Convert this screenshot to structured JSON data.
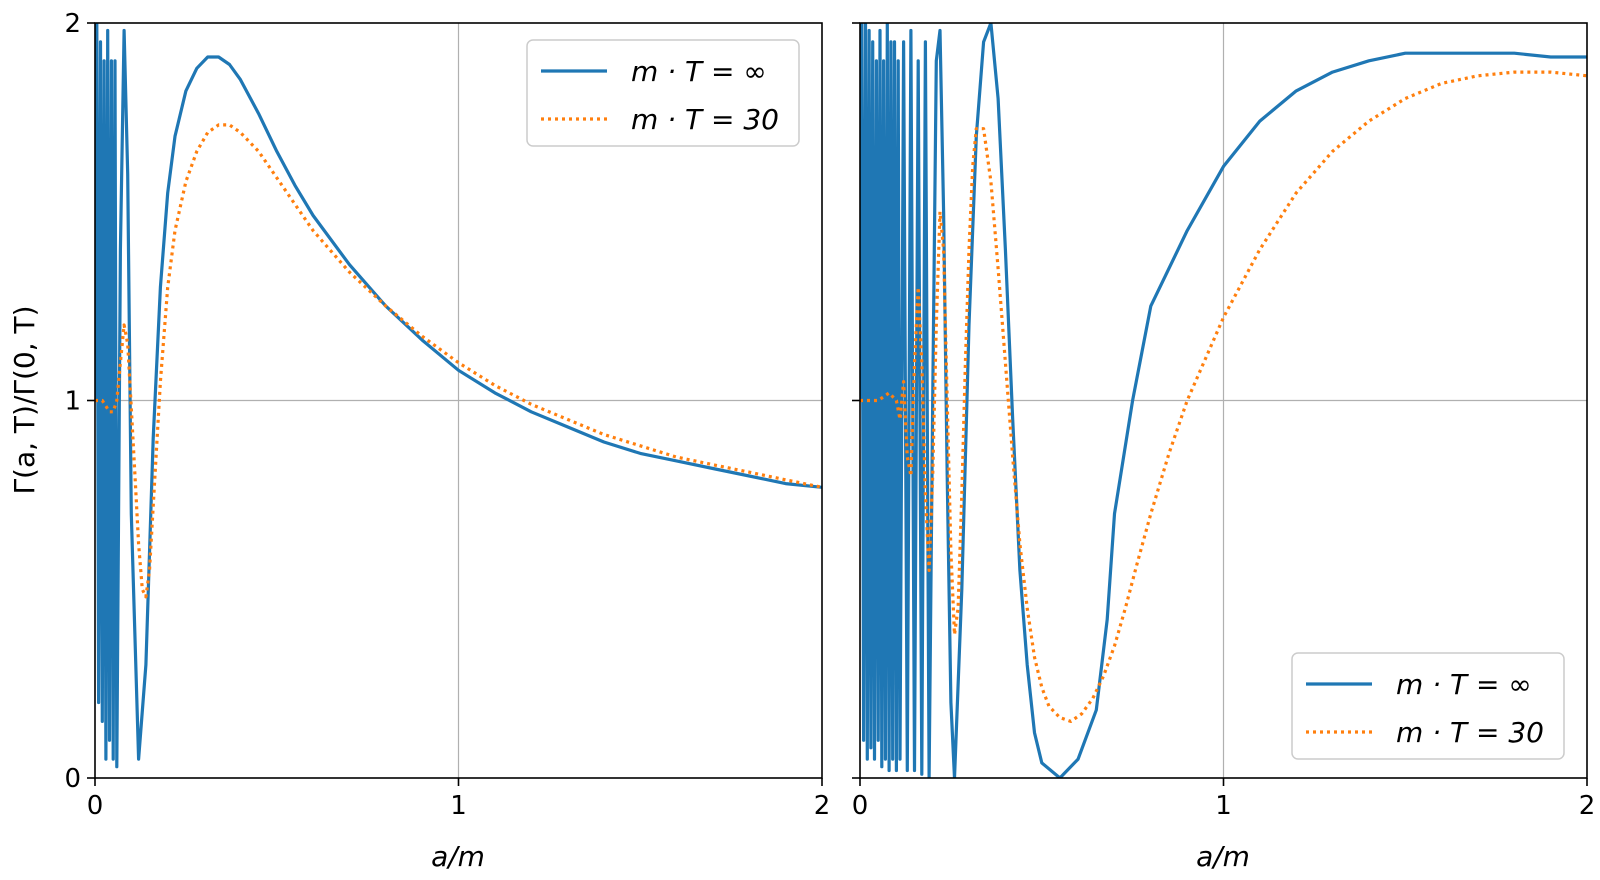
{
  "chart_data": [
    {
      "type": "line",
      "panel": "left",
      "xlabel": "a/m",
      "ylabel": "Γ(a, T)/Γ(0, T)",
      "xlim": [
        0,
        2
      ],
      "ylim": [
        0,
        2
      ],
      "xticks": [
        "0",
        "1",
        "2"
      ],
      "yticks": [
        "0",
        "1",
        "2"
      ],
      "grid": true,
      "legend_position": "top-right",
      "colors": {
        "inf": "#1f77b4",
        "t30": "#ff7f0e"
      },
      "series": [
        {
          "name": "m · T = ∞",
          "style": "solid",
          "x": [
            0.0,
            0.005,
            0.01,
            0.015,
            0.02,
            0.025,
            0.03,
            0.035,
            0.04,
            0.045,
            0.05,
            0.055,
            0.06,
            0.07,
            0.08,
            0.09,
            0.1,
            0.12,
            0.14,
            0.16,
            0.18,
            0.2,
            0.22,
            0.25,
            0.28,
            0.31,
            0.34,
            0.37,
            0.4,
            0.45,
            0.5,
            0.55,
            0.6,
            0.7,
            0.8,
            0.9,
            1.0,
            1.1,
            1.2,
            1.3,
            1.4,
            1.5,
            1.6,
            1.7,
            1.8,
            1.9,
            2.0
          ],
          "y": [
            1.0,
            2.0,
            0.2,
            1.95,
            0.15,
            1.9,
            0.05,
            1.98,
            0.1,
            1.9,
            0.05,
            1.9,
            0.03,
            1.4,
            1.98,
            1.6,
            0.7,
            0.05,
            0.3,
            0.9,
            1.3,
            1.55,
            1.7,
            1.82,
            1.88,
            1.91,
            1.91,
            1.89,
            1.85,
            1.76,
            1.66,
            1.57,
            1.49,
            1.36,
            1.25,
            1.16,
            1.08,
            1.02,
            0.97,
            0.93,
            0.89,
            0.86,
            0.84,
            0.82,
            0.8,
            0.78,
            0.77
          ]
        },
        {
          "name": "m · T = 30",
          "style": "dotted",
          "x": [
            0.0,
            0.02,
            0.04,
            0.05,
            0.06,
            0.07,
            0.08,
            0.09,
            0.1,
            0.11,
            0.12,
            0.13,
            0.14,
            0.15,
            0.16,
            0.18,
            0.2,
            0.22,
            0.25,
            0.28,
            0.31,
            0.34,
            0.37,
            0.4,
            0.45,
            0.5,
            0.55,
            0.6,
            0.7,
            0.8,
            0.9,
            1.0,
            1.1,
            1.2,
            1.3,
            1.4,
            1.5,
            1.6,
            1.7,
            1.8,
            1.9,
            2.0
          ],
          "y": [
            1.0,
            1.0,
            0.97,
            0.97,
            1.0,
            1.1,
            1.2,
            1.15,
            0.98,
            0.8,
            0.62,
            0.5,
            0.48,
            0.55,
            0.72,
            1.05,
            1.3,
            1.45,
            1.58,
            1.66,
            1.71,
            1.73,
            1.73,
            1.71,
            1.66,
            1.59,
            1.52,
            1.45,
            1.34,
            1.25,
            1.17,
            1.1,
            1.04,
            0.99,
            0.95,
            0.91,
            0.88,
            0.85,
            0.83,
            0.81,
            0.79,
            0.77
          ]
        }
      ]
    },
    {
      "type": "line",
      "panel": "right",
      "xlabel": "a/m",
      "ylabel": "",
      "xlim": [
        0,
        2
      ],
      "ylim": [
        0,
        2
      ],
      "xticks": [
        "0",
        "1",
        "2"
      ],
      "yticks": [
        "",
        "",
        ""
      ],
      "grid": true,
      "legend_position": "bottom-right",
      "colors": {
        "inf": "#1f77b4",
        "t30": "#ff7f0e"
      },
      "series": [
        {
          "name": "m · T = ∞",
          "style": "solid",
          "x": [
            0.0,
            0.005,
            0.01,
            0.015,
            0.02,
            0.025,
            0.03,
            0.035,
            0.04,
            0.045,
            0.05,
            0.055,
            0.06,
            0.065,
            0.07,
            0.075,
            0.08,
            0.085,
            0.09,
            0.095,
            0.1,
            0.105,
            0.11,
            0.12,
            0.13,
            0.14,
            0.15,
            0.16,
            0.17,
            0.18,
            0.19,
            0.2,
            0.21,
            0.22,
            0.23,
            0.24,
            0.25,
            0.26,
            0.28,
            0.3,
            0.32,
            0.34,
            0.36,
            0.38,
            0.4,
            0.42,
            0.44,
            0.46,
            0.48,
            0.5,
            0.55,
            0.6,
            0.65,
            0.68,
            0.7,
            0.75,
            0.8,
            0.9,
            1.0,
            1.1,
            1.2,
            1.3,
            1.4,
            1.5,
            1.6,
            1.7,
            1.8,
            1.9,
            2.0
          ],
          "y": [
            1.0,
            2.0,
            0.1,
            2.0,
            0.05,
            1.98,
            0.08,
            1.95,
            0.05,
            1.9,
            0.1,
            1.98,
            0.03,
            1.9,
            0.05,
            2.0,
            0.02,
            1.95,
            0.05,
            1.95,
            0.02,
            1.9,
            0.05,
            1.95,
            0.02,
            1.98,
            0.02,
            1.9,
            0.01,
            1.95,
            0.0,
            1.0,
            1.9,
            1.98,
            1.5,
            0.8,
            0.2,
            0.0,
            0.5,
            1.2,
            1.7,
            1.95,
            2.0,
            1.8,
            1.4,
            0.95,
            0.55,
            0.3,
            0.12,
            0.04,
            0.0,
            0.05,
            0.18,
            0.42,
            0.7,
            1.0,
            1.25,
            1.45,
            1.62,
            1.74,
            1.82,
            1.87,
            1.9,
            1.92,
            1.92,
            1.92,
            1.92,
            1.91,
            1.91
          ],
          "x_fix": [
            0.0,
            0.005,
            0.01,
            0.015,
            0.02,
            0.025,
            0.03,
            0.035,
            0.04,
            0.045,
            0.05,
            0.055,
            0.06,
            0.065,
            0.07,
            0.075,
            0.08,
            0.085,
            0.09,
            0.095,
            0.1,
            0.105,
            0.11,
            0.12,
            0.13,
            0.14,
            0.15,
            0.16,
            0.17,
            0.18,
            0.19,
            0.2,
            0.21,
            0.22,
            0.23,
            0.24,
            0.25,
            0.26,
            0.28,
            0.3,
            0.32,
            0.34,
            0.36,
            0.38,
            0.4,
            0.42,
            0.44,
            0.46,
            0.48,
            0.5,
            0.55,
            0.6,
            0.65,
            0.68,
            0.7,
            0.75,
            0.8,
            0.9,
            1.0,
            1.1,
            1.2,
            1.3,
            1.4,
            1.5,
            1.6,
            1.7,
            1.8,
            1.9,
            2.0
          ]
        },
        {
          "name": "m · T = 30",
          "style": "dotted",
          "x": [
            0.0,
            0.05,
            0.08,
            0.1,
            0.11,
            0.12,
            0.13,
            0.14,
            0.15,
            0.16,
            0.17,
            0.18,
            0.19,
            0.2,
            0.21,
            0.22,
            0.23,
            0.24,
            0.25,
            0.26,
            0.27,
            0.28,
            0.29,
            0.3,
            0.31,
            0.32,
            0.34,
            0.36,
            0.38,
            0.4,
            0.42,
            0.44,
            0.46,
            0.48,
            0.5,
            0.52,
            0.55,
            0.58,
            0.61,
            0.64,
            0.67,
            0.7,
            0.73,
            0.76,
            0.8,
            0.85,
            0.9,
            1.0,
            1.1,
            1.2,
            1.3,
            1.4,
            1.5,
            1.6,
            1.7,
            1.8,
            1.9,
            2.0
          ],
          "y": [
            1.0,
            1.0,
            1.02,
            1.0,
            0.95,
            1.05,
            0.85,
            0.8,
            1.1,
            1.3,
            1.1,
            0.75,
            0.55,
            0.8,
            1.2,
            1.5,
            1.4,
            1.0,
            0.6,
            0.38,
            0.45,
            0.75,
            1.1,
            1.4,
            1.62,
            1.72,
            1.72,
            1.58,
            1.35,
            1.1,
            0.85,
            0.62,
            0.45,
            0.32,
            0.24,
            0.19,
            0.16,
            0.15,
            0.17,
            0.21,
            0.27,
            0.35,
            0.45,
            0.56,
            0.7,
            0.86,
            1.0,
            1.22,
            1.4,
            1.55,
            1.66,
            1.74,
            1.8,
            1.84,
            1.86,
            1.87,
            1.87,
            1.86
          ]
        }
      ]
    }
  ]
}
